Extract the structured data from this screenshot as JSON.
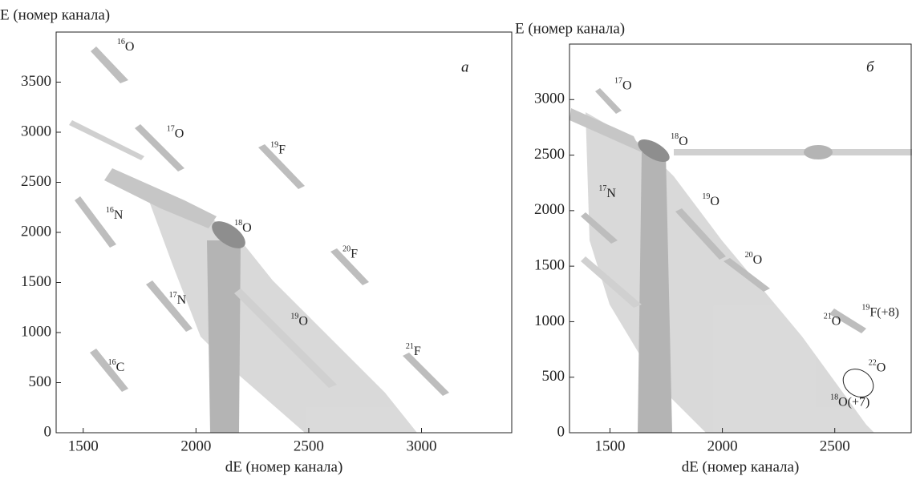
{
  "chart_data": [
    {
      "type": "scatter",
      "panel": "a",
      "xlabel": "dE (номер канала)",
      "ylabel": "E (номер канала)",
      "xlim": [
        1380,
        3400
      ],
      "ylim": [
        0,
        4000
      ],
      "xticks": [
        1500,
        2000,
        2500,
        3000
      ],
      "yticks": [
        0,
        500,
        1000,
        1500,
        2000,
        2500,
        3000,
        3500
      ],
      "annotations": [
        {
          "mass": "16",
          "symbol": "O",
          "x": 1650,
          "y": 3850
        },
        {
          "mass": "17",
          "symbol": "O",
          "x": 1870,
          "y": 2980
        },
        {
          "mass": "19",
          "symbol": "F",
          "x": 2330,
          "y": 2820
        },
        {
          "mass": "16",
          "symbol": "N",
          "x": 1600,
          "y": 2170
        },
        {
          "mass": "18",
          "symbol": "O",
          "x": 2170,
          "y": 2040
        },
        {
          "mass": "20",
          "symbol": "F",
          "x": 2650,
          "y": 1780
        },
        {
          "mass": "17",
          "symbol": "N",
          "x": 1880,
          "y": 1320
        },
        {
          "mass": "19",
          "symbol": "O",
          "x": 2420,
          "y": 1110
        },
        {
          "mass": "21",
          "symbol": "F",
          "x": 2930,
          "y": 810
        },
        {
          "mass": "16",
          "symbol": "C",
          "x": 1610,
          "y": 650
        }
      ]
    },
    {
      "type": "scatter",
      "panel": "б",
      "xlabel": "dE (номер канала)",
      "ylabel": "E (номер канала)",
      "xlim": [
        1320,
        2840
      ],
      "ylim": [
        0,
        3500
      ],
      "xticks": [
        1500,
        2000,
        2500
      ],
      "yticks": [
        0,
        500,
        1000,
        1500,
        2000,
        2500,
        3000
      ],
      "annotations": [
        {
          "mass": "17",
          "symbol": "O",
          "x": 1520,
          "y": 3120
        },
        {
          "mass": "18",
          "symbol": "O",
          "x": 1770,
          "y": 2620
        },
        {
          "mass": "17",
          "symbol": "N",
          "x": 1450,
          "y": 2150
        },
        {
          "mass": "19",
          "symbol": "O",
          "x": 1910,
          "y": 2080
        },
        {
          "mass": "20",
          "symbol": "O",
          "x": 2100,
          "y": 1550
        },
        {
          "mass": "21",
          "symbol": "O",
          "x": 2450,
          "y": 1000
        },
        {
          "mass": "19",
          "symbol": "F(+8)",
          "x": 2620,
          "y": 1080
        },
        {
          "mass": "22",
          "symbol": "O",
          "x": 2650,
          "y": 580
        },
        {
          "mass": "18",
          "symbol": "O(+7)",
          "x": 2480,
          "y": 270
        }
      ]
    }
  ]
}
